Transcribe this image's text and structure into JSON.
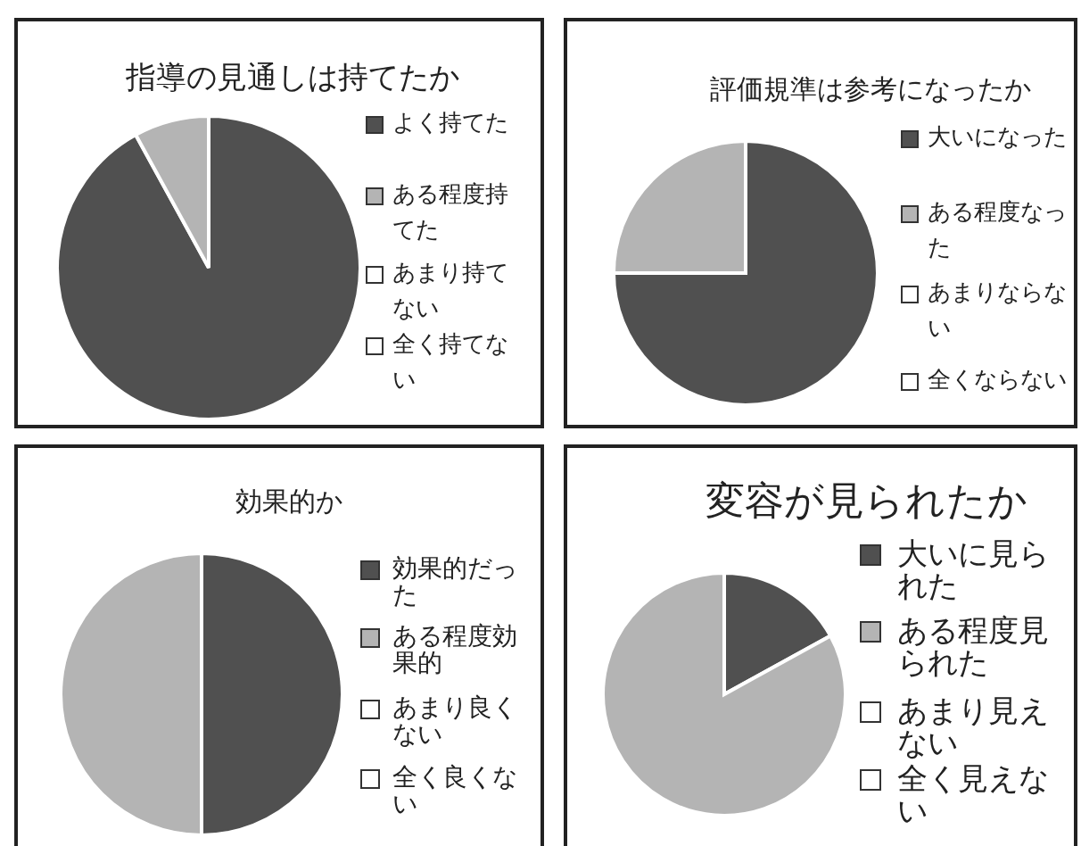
{
  "chart_data": [
    {
      "type": "pie",
      "title": "指導の見通しは持てたか",
      "categories": [
        "よく持てた",
        "ある程度持てた",
        "あまり持てない",
        "全く持てない"
      ],
      "values": [
        92,
        8,
        0,
        0
      ],
      "colors": [
        "#505050",
        "#b4b4b4",
        "#ffffff",
        "#ffffff"
      ],
      "legend": "right"
    },
    {
      "type": "pie",
      "title": "評価規準は参考になったか",
      "categories": [
        "大いになった",
        "ある程度なった",
        "あまりならない",
        "全くならない"
      ],
      "values": [
        75,
        25,
        0,
        0
      ],
      "colors": [
        "#505050",
        "#b4b4b4",
        "#ffffff",
        "#ffffff"
      ],
      "legend": "right"
    },
    {
      "type": "pie",
      "title": "効果的か",
      "categories": [
        "効果的だった",
        "ある程度効果的",
        "あまり良くない",
        "全く良くない"
      ],
      "values": [
        50,
        50,
        0,
        0
      ],
      "colors": [
        "#505050",
        "#b4b4b4",
        "#ffffff",
        "#ffffff"
      ],
      "legend": "right"
    },
    {
      "type": "pie",
      "title": "変容が見られたか",
      "categories": [
        "大いに見られた",
        "ある程度見られた",
        "あまり見えない",
        "全く見えない"
      ],
      "values": [
        17,
        83,
        0,
        0
      ],
      "colors": [
        "#505050",
        "#b4b4b4",
        "#ffffff",
        "#ffffff"
      ],
      "legend": "right"
    }
  ]
}
